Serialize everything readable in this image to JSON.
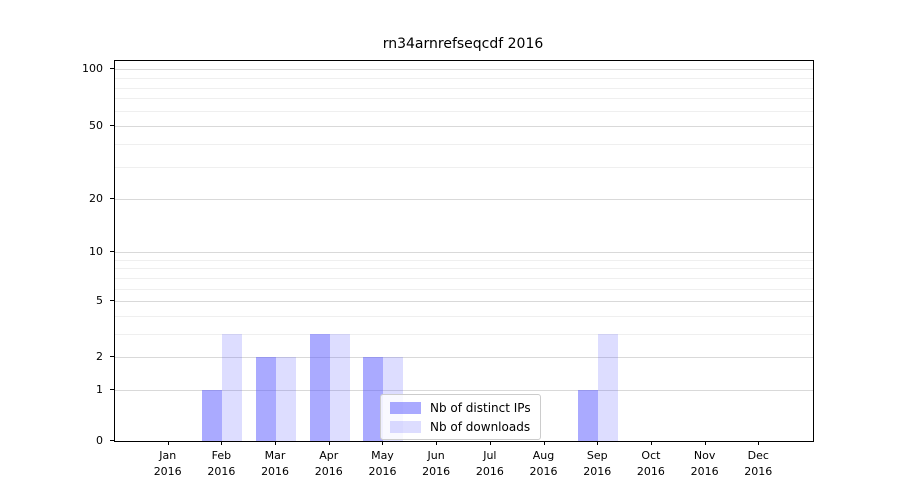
{
  "figure": {
    "title": "rn34arnrefseqcdf 2016"
  },
  "chart_data": {
    "type": "bar",
    "title": "rn34arnrefseqcdf 2016",
    "categories": [
      "Jan",
      "Feb",
      "Mar",
      "Apr",
      "May",
      "Jun",
      "Jul",
      "Aug",
      "Sep",
      "Oct",
      "Nov",
      "Dec"
    ],
    "x_tick_year": "2016",
    "series": [
      {
        "name": "Nb of distinct IPs",
        "color": "rgba(85,85,255,0.5)",
        "values": [
          0,
          1,
          2,
          3,
          2,
          0,
          0,
          0,
          1,
          0,
          0,
          0
        ]
      },
      {
        "name": "Nb of downloads",
        "color": "rgba(85,85,255,0.2)",
        "values": [
          0,
          3,
          2,
          3,
          2,
          0,
          0,
          0,
          3,
          0,
          0,
          0
        ]
      }
    ],
    "xlabel": "",
    "ylabel": "",
    "y_scale": "symlog",
    "ylim": [
      0,
      110
    ],
    "y_major_ticks": [
      0,
      1,
      2,
      5,
      10,
      20,
      50,
      100
    ],
    "y_minor_ticks": [
      3,
      4,
      6,
      7,
      8,
      9,
      30,
      40,
      60,
      70,
      80,
      90
    ],
    "grid": "on",
    "legend_position": "lower center",
    "colors": {
      "major_grid": "#d9d9d9",
      "minor_grid": "#efefef",
      "axis": "#000000",
      "text": "#000000",
      "legend_border": "#cccccc"
    }
  }
}
